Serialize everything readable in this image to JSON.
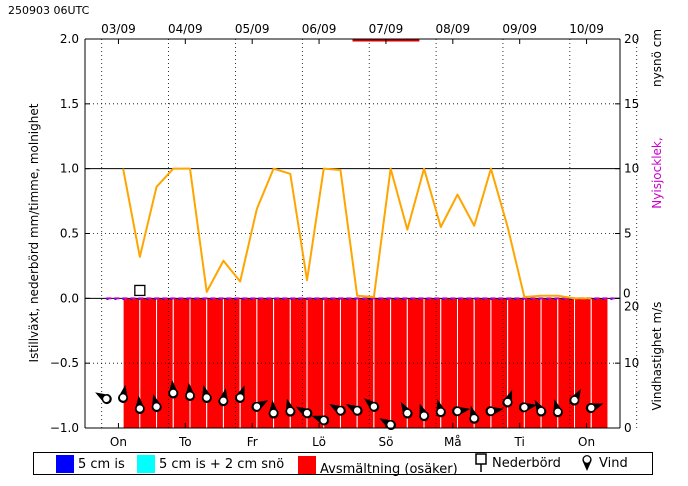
{
  "header": {
    "timestamp": "250903 06UTC"
  },
  "colors": {
    "melt": "#ff0000",
    "five_cm_ice": "#0000ff",
    "ice_plus_snow": "#00ffff",
    "cloudiness_line": "#ffa500",
    "new_snow": "#cc00cc",
    "warning_bar": "#cc0000"
  },
  "chart_data": {
    "type": "line",
    "title": "",
    "top_dates": [
      "03/09",
      "04/09",
      "05/09",
      "06/09",
      "07/09",
      "08/09",
      "09/09",
      "10/09"
    ],
    "weekdays": [
      "On",
      "To",
      "Fr",
      "Lö",
      "Sö",
      "Må",
      "Ti",
      "On"
    ],
    "ylabel_left": "Istillväxt, nederbörd mm/timme, molnighet",
    "ylabel_right_top_black": "nysnö cm",
    "ylabel_right_top_magenta": "Nyisjocklek,",
    "ylabel_right_bottom": "Vindhastighet m/s",
    "ylim_left": [
      -1.0,
      2.0
    ],
    "left_ticks": [
      "2.0",
      "1.5",
      "1.0",
      "0.5",
      "0.0",
      "−0.5",
      "−1.0"
    ],
    "right_top_ticks": [
      "20",
      "15",
      "10",
      "5",
      "0"
    ],
    "right_bottom_ticks": [
      "20",
      "10",
      "0"
    ],
    "grid": true,
    "time_range_days": [
      0,
      8.0
    ],
    "cloudiness": {
      "name": "molnighet",
      "t": [
        0.57,
        0.82,
        1.07,
        1.32,
        1.57,
        1.82,
        2.07,
        2.32,
        2.57,
        2.82,
        3.07,
        3.32,
        3.57,
        3.82,
        4.07,
        4.32,
        4.57,
        4.82,
        5.07,
        5.32,
        5.57,
        5.82,
        6.07,
        6.32,
        6.57,
        6.82,
        7.07,
        7.32,
        7.57
      ],
      "v": [
        1.0,
        0.32,
        0.86,
        1.0,
        1.0,
        0.05,
        0.29,
        0.13,
        0.69,
        1.0,
        0.96,
        0.14,
        1.0,
        0.99,
        0.02,
        0.01,
        1.0,
        0.53,
        1.0,
        0.55,
        0.8,
        0.56,
        1.0,
        0.55,
        0.01,
        0.02,
        0.02,
        0.0,
        0.0
      ]
    },
    "new_snow_line": {
      "t_start": 0.32,
      "t_end": 7.92,
      "v": 0.0
    },
    "precipitation_marker": {
      "t": 0.82,
      "v": 0.03
    },
    "melt_bars": {
      "name": "Avsmältning (osäker)",
      "t_start": 0.57,
      "t_end": 7.82,
      "step": 0.25,
      "top": 0.0,
      "bottom": -1.0
    },
    "warning_bar": {
      "t_start": 4.0,
      "t_end": 5.0,
      "v": 2.0
    },
    "wind": {
      "name": "Vind",
      "t": [
        0.32,
        0.57,
        0.82,
        1.07,
        1.32,
        1.57,
        1.82,
        2.07,
        2.32,
        2.57,
        2.82,
        3.07,
        3.32,
        3.57,
        3.82,
        4.07,
        4.32,
        4.57,
        4.82,
        5.07,
        5.32,
        5.57,
        5.82,
        6.07,
        6.32,
        6.57,
        6.82,
        7.07,
        7.32,
        7.57
      ],
      "speed": [
        4.5,
        4.7,
        3.0,
        3.3,
        5.4,
        5.0,
        4.7,
        4.2,
        4.7,
        3.3,
        2.3,
        2.6,
        2.3,
        1.2,
        2.7,
        2.7,
        3.3,
        0.5,
        2.3,
        1.9,
        2.5,
        2.6,
        1.5,
        2.6,
        4.0,
        3.2,
        2.6,
        2.5,
        4.3,
        3.1
      ],
      "dir_deg": [
        300,
        10,
        355,
        345,
        355,
        355,
        345,
        10,
        20,
        60,
        355,
        345,
        300,
        290,
        300,
        300,
        310,
        300,
        330,
        340,
        345,
        80,
        345,
        80,
        20,
        80,
        330,
        345,
        30,
        70
      ]
    }
  },
  "legend": {
    "items": [
      {
        "label": "5 cm is",
        "color": "#0000ff"
      },
      {
        "label": "5 cm is + 2 cm snö",
        "color": "#00ffff"
      },
      {
        "label": "Avsmältning (osäker)",
        "color": "#ff0000"
      },
      {
        "label": "Nederbörd",
        "icon": "square-marker-icon"
      },
      {
        "label": "Vind",
        "icon": "wind-pin-icon"
      }
    ]
  }
}
